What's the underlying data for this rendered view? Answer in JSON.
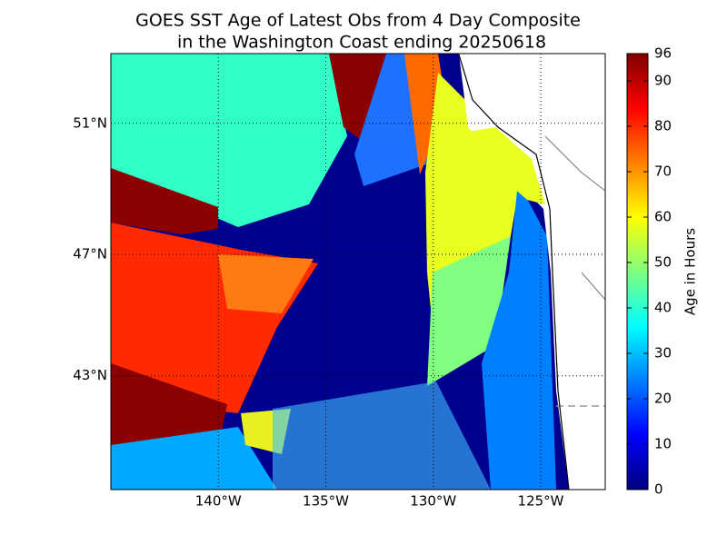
{
  "map": {
    "title": [
      "GOES SST Age of Latest Obs from 4 Day Composite",
      "in the Washington Coast ending 20250618"
    ],
    "lon_extent": [
      -145,
      -122
    ],
    "lat_extent": [
      39.0,
      53.0
    ],
    "lon_ticks": [
      {
        "value": -140,
        "label": "140°W"
      },
      {
        "value": -135,
        "label": "135°W"
      },
      {
        "value": -130,
        "label": "130°W"
      },
      {
        "value": -125,
        "label": "125°W"
      }
    ],
    "lat_ticks": [
      {
        "value": 51,
        "label": "51°N"
      },
      {
        "value": 47,
        "label": "47°N"
      },
      {
        "value": 43,
        "label": "43°N"
      }
    ],
    "colorbar": {
      "label": "Age in Hours",
      "lim": [
        0,
        96
      ],
      "ticks": [
        0,
        10,
        20,
        30,
        40,
        50,
        60,
        70,
        80,
        90,
        96
      ]
    }
  }
}
